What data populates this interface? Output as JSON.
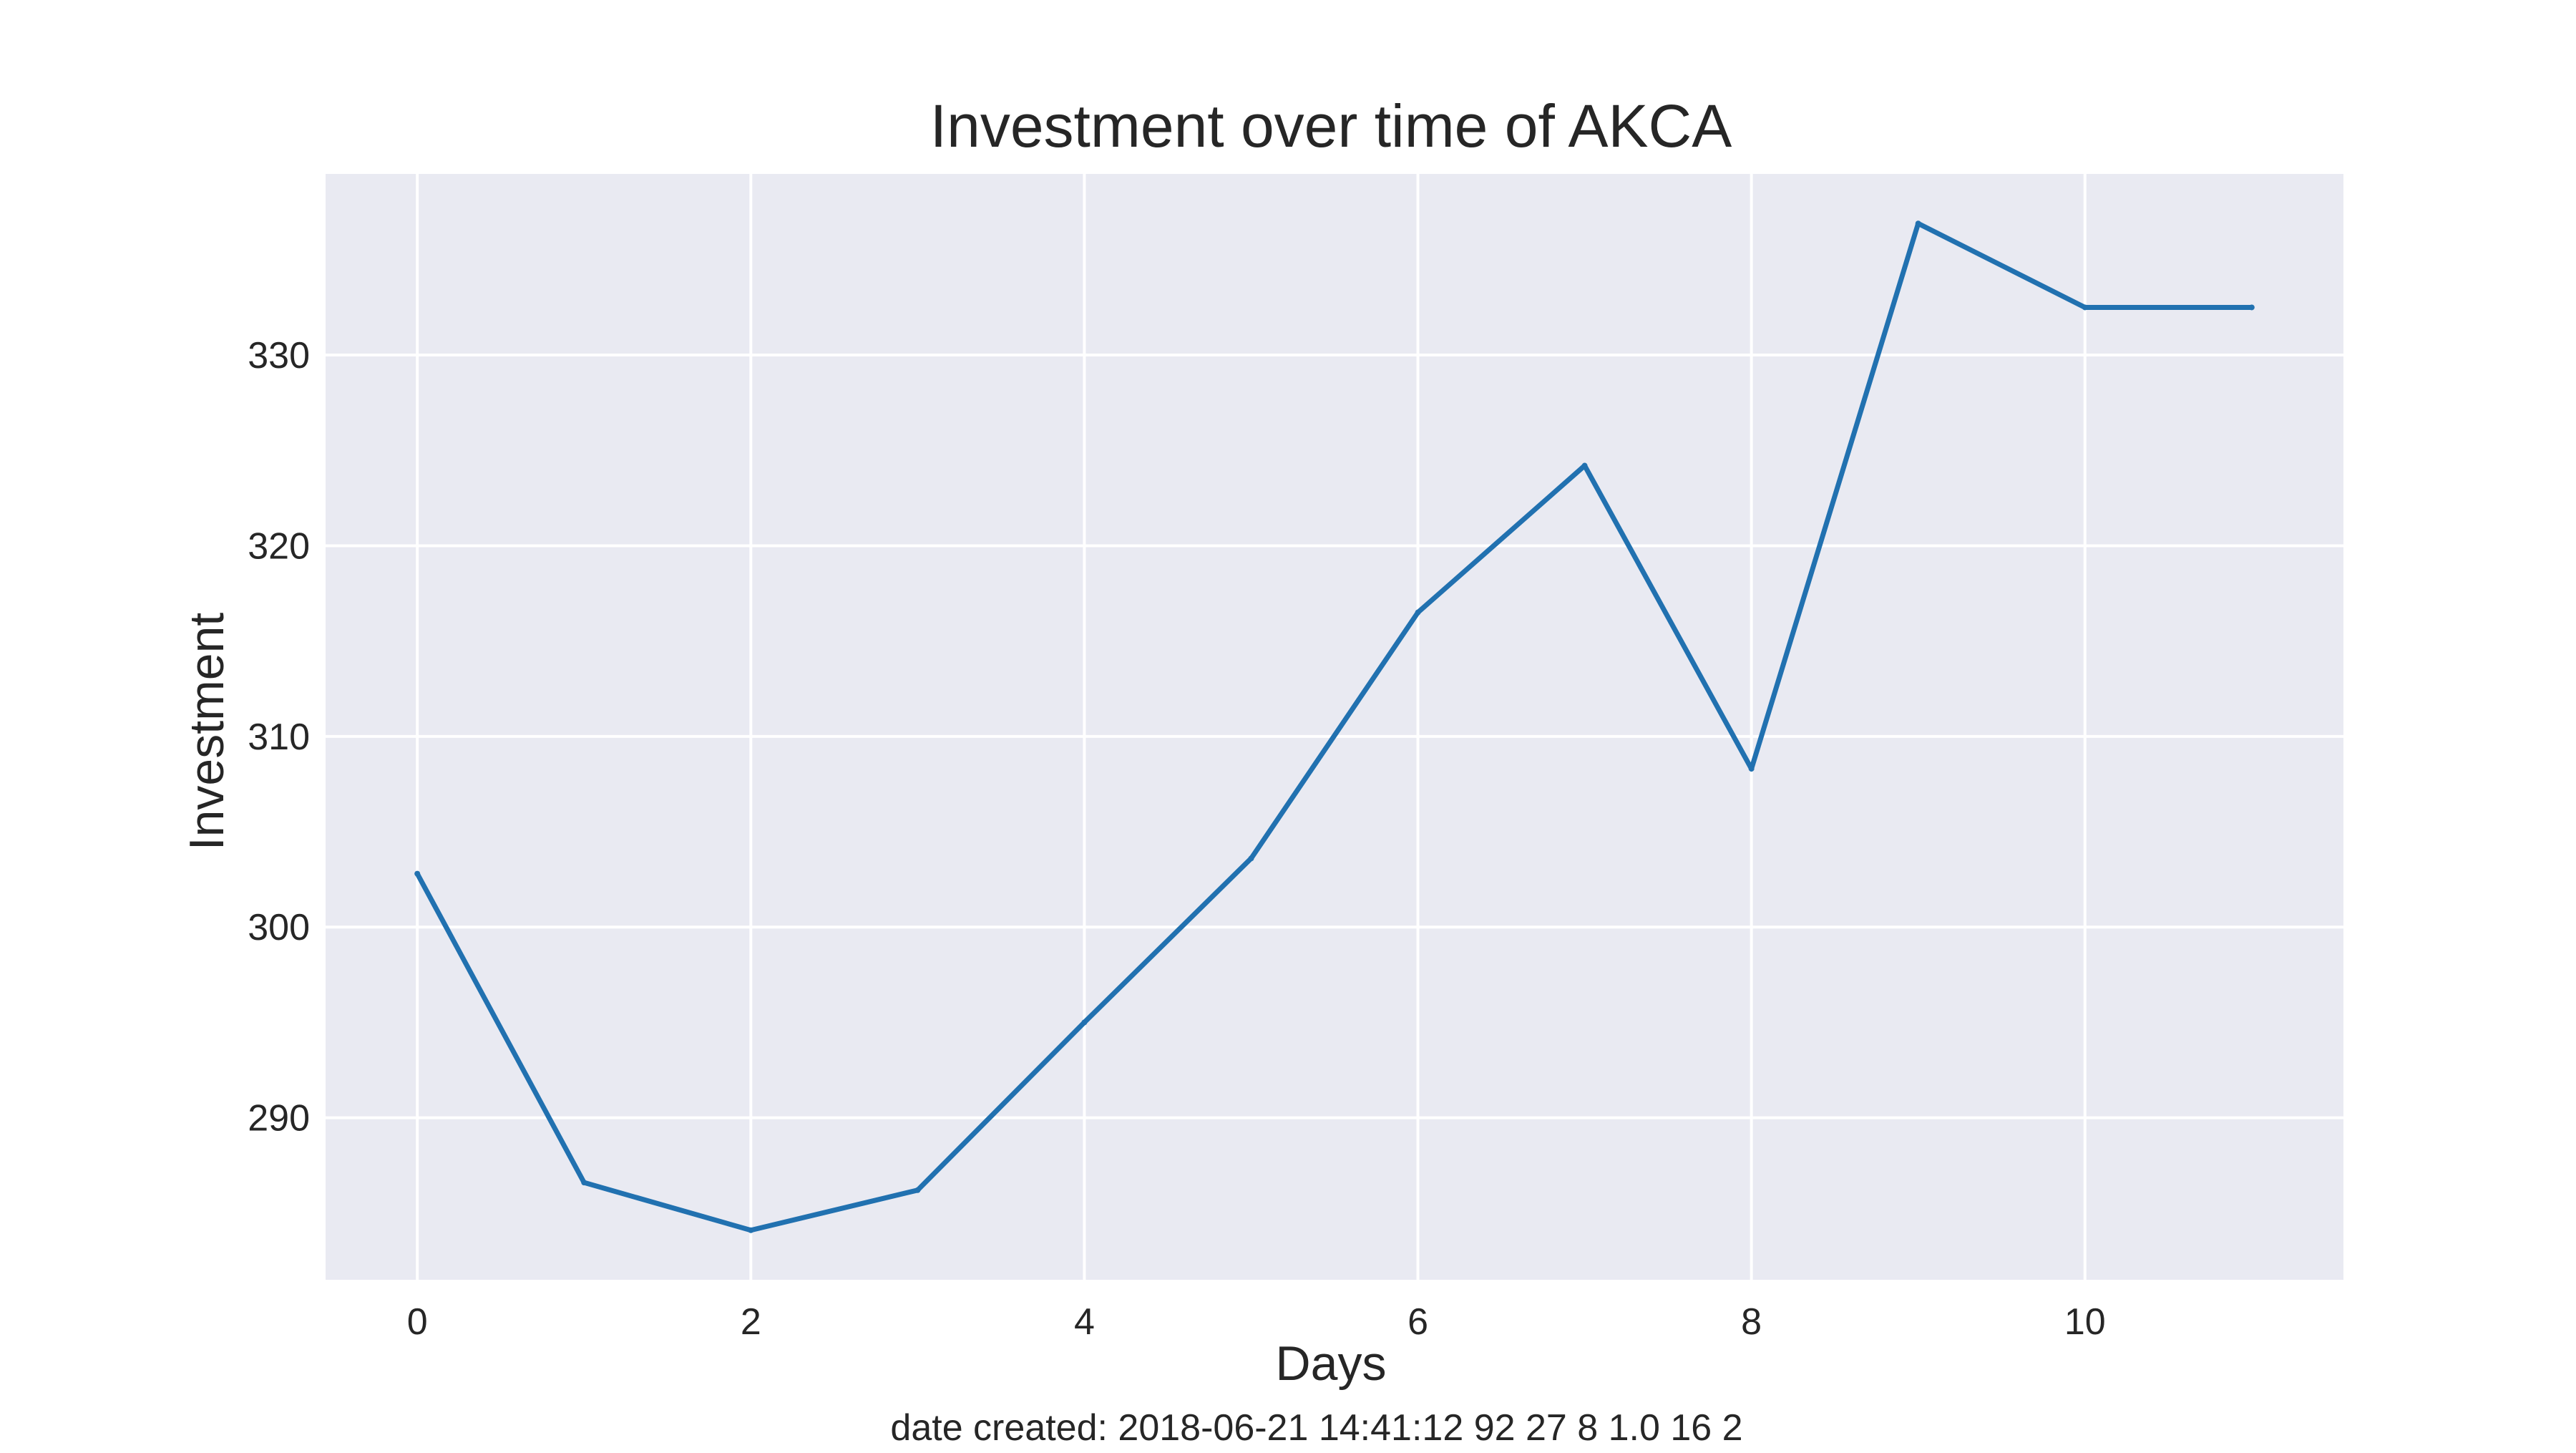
{
  "chart_data": {
    "type": "line",
    "title": "Investment over time of AKCA",
    "xlabel": "Days",
    "ylabel": "Investment",
    "footer": "date created: 2018-06-21 14:41:12 92 27 8 1.0 16 2",
    "x": [
      0,
      1,
      2,
      3,
      4,
      5,
      6,
      7,
      8,
      9,
      10,
      11
    ],
    "series": [
      {
        "values": [
          302.8,
          286.6,
          284.1,
          286.2,
          295.0,
          303.6,
          316.5,
          324.2,
          308.3,
          336.9,
          332.5,
          332.5
        ],
        "color": "#2171b0"
      }
    ],
    "xlim": [
      -0.55,
      11.55
    ],
    "ylim": [
      281.5,
      339.5
    ],
    "xticks": [
      0,
      2,
      4,
      6,
      8,
      10
    ],
    "yticks": [
      290,
      300,
      310,
      320,
      330
    ],
    "grid": true,
    "style": {
      "plot_background": "#e9eaf2",
      "grid_color": "#ffffff"
    }
  }
}
